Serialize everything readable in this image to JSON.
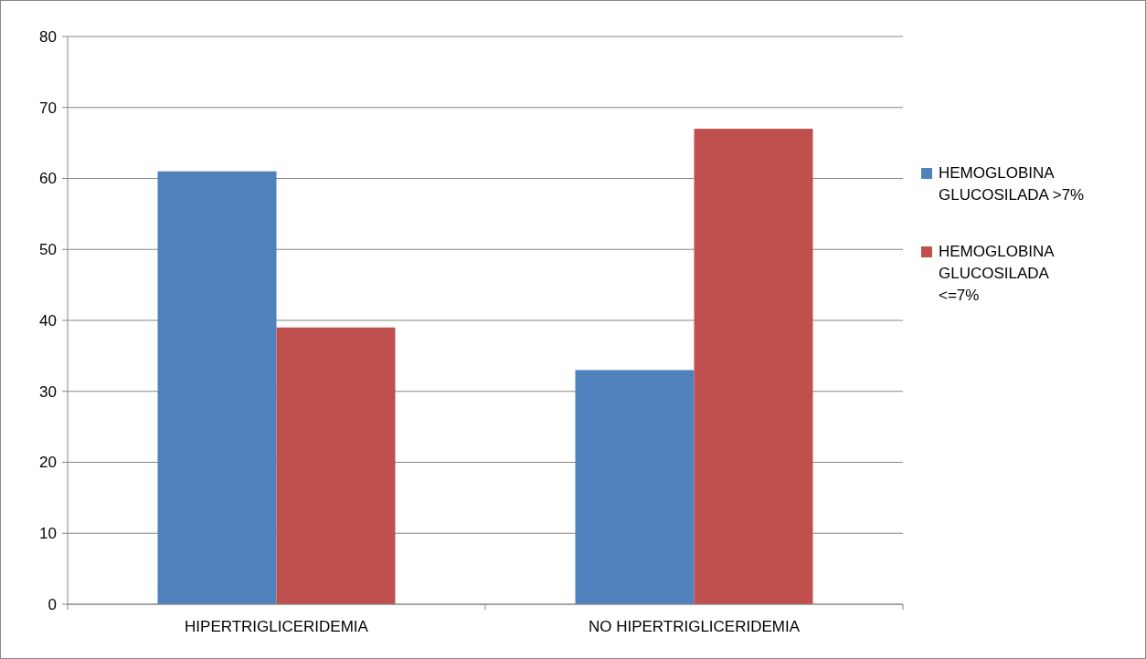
{
  "chart_data": {
    "type": "bar",
    "categories": [
      "HIPERTRIGLICERIDEMIA",
      "NO HIPERTRIGLICERIDEMIA"
    ],
    "series": [
      {
        "name": "HEMOGLOBINA GLUCOSILADA >7%",
        "color": "#4f81bd",
        "values": [
          61,
          33
        ]
      },
      {
        "name": "HEMOGLOBINA GLUCOSILADA <=7%",
        "color": "#c0504d",
        "values": [
          39,
          67
        ]
      }
    ],
    "ylim": [
      0,
      80
    ],
    "yticks": [
      0,
      10,
      20,
      30,
      40,
      50,
      60,
      70,
      80
    ],
    "grid": "y",
    "legend": "right"
  }
}
